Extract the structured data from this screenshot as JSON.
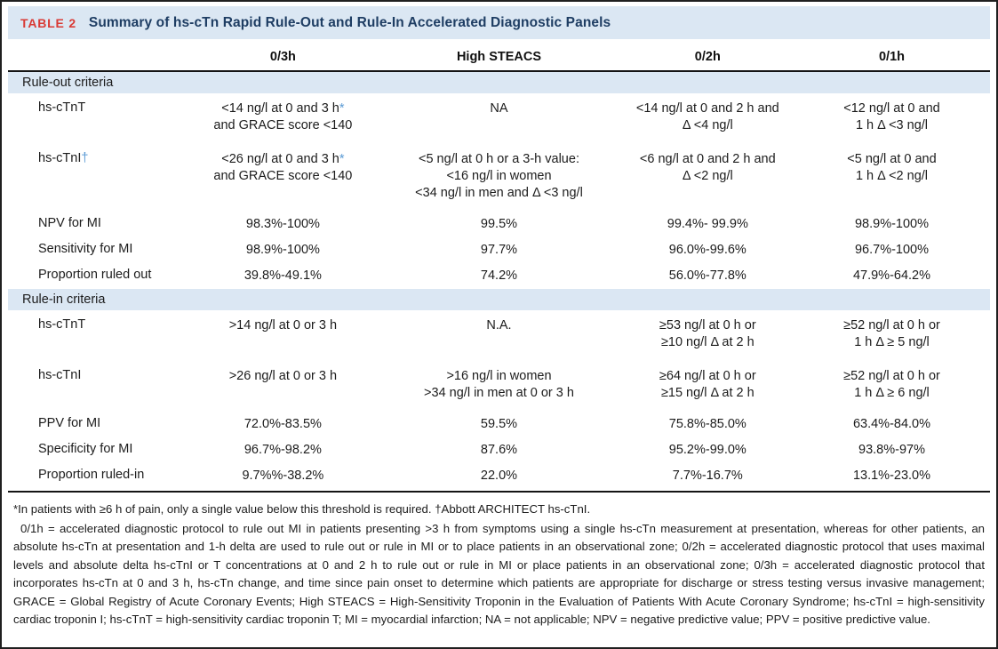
{
  "table": {
    "tag": "TABLE 2",
    "title": "Summary of hs-cTn Rapid Rule-Out and Rule-In Accelerated Diagnostic Panels",
    "columns": [
      "0/3h",
      "High STEACS",
      "0/2h",
      "0/1h"
    ],
    "sections": [
      {
        "label": "Rule-out criteria",
        "rows": [
          {
            "label": "hs-cTnT",
            "cells": [
              [
                "<14 ng/l at 0 and 3 h*",
                "and GRACE score <140"
              ],
              [
                "NA"
              ],
              [
                "<14 ng/l at 0 and 2 h and",
                "Δ <4 ng/l"
              ],
              [
                "<12 ng/l at 0 and",
                "1 h Δ <3 ng/l"
              ]
            ]
          },
          {
            "label": "hs-cTnI†",
            "cells": [
              [
                "<26 ng/l at 0 and 3 h*",
                "and GRACE score <140"
              ],
              [
                "<5 ng/l at 0 h or a 3-h value:",
                "<16 ng/l in women",
                "<34 ng/l in men and Δ <3 ng/l"
              ],
              [
                "<6 ng/l at 0 and 2 h and",
                "Δ <2 ng/l"
              ],
              [
                "<5 ng/l at 0 and",
                "1 h Δ <2 ng/l"
              ]
            ]
          },
          {
            "label": "NPV for MI",
            "cells": [
              [
                "98.3%-100%"
              ],
              [
                "99.5%"
              ],
              [
                "99.4%- 99.9%"
              ],
              [
                "98.9%-100%"
              ]
            ]
          },
          {
            "label": "Sensitivity for MI",
            "cells": [
              [
                "98.9%-100%"
              ],
              [
                "97.7%"
              ],
              [
                "96.0%-99.6%"
              ],
              [
                "96.7%-100%"
              ]
            ]
          },
          {
            "label": "Proportion ruled out",
            "cells": [
              [
                "39.8%-49.1%"
              ],
              [
                "74.2%"
              ],
              [
                "56.0%-77.8%"
              ],
              [
                "47.9%-64.2%"
              ]
            ]
          }
        ]
      },
      {
        "label": "Rule-in criteria",
        "rows": [
          {
            "label": "hs-cTnT",
            "cells": [
              [
                ">14 ng/l at 0 or 3 h"
              ],
              [
                "N.A."
              ],
              [
                "≥53 ng/l at 0 h or",
                "≥10 ng/l Δ at 2 h"
              ],
              [
                "≥52 ng/l at 0 h or",
                "1 h Δ ≥ 5 ng/l"
              ]
            ]
          },
          {
            "label": "hs-cTnI",
            "cells": [
              [
                ">26 ng/l at 0 or 3 h"
              ],
              [
                ">16 ng/l in women",
                ">34 ng/l in men at 0 or 3 h"
              ],
              [
                "≥64 ng/l at 0 h or",
                "≥15 ng/l Δ at 2 h"
              ],
              [
                "≥52 ng/l at 0 h or",
                "1 h Δ ≥ 6 ng/l"
              ]
            ]
          },
          {
            "label": "PPV for MI",
            "cells": [
              [
                "72.0%-83.5%"
              ],
              [
                "59.5%"
              ],
              [
                "75.8%-85.0%"
              ],
              [
                "63.4%-84.0%"
              ]
            ]
          },
          {
            "label": "Specificity for MI",
            "cells": [
              [
                "96.7%-98.2%"
              ],
              [
                "87.6%"
              ],
              [
                "95.2%-99.0%"
              ],
              [
                "93.8%-97%"
              ]
            ]
          },
          {
            "label": "Proportion ruled-in",
            "cells": [
              [
                "9.7%%-38.2%"
              ],
              [
                "22.0%"
              ],
              [
                "7.7%-16.7%"
              ],
              [
                "13.1%-23.0%"
              ]
            ]
          }
        ]
      }
    ]
  },
  "footnotes": {
    "symbols": "*In patients with ≥6 h of pain, only a single value below this threshold is required. †Abbott ARCHITECT hs-cTnI.",
    "abbreviations": "0/1h = accelerated diagnostic protocol to rule out MI in patients presenting >3 h from symptoms using a single hs-cTn measurement at presentation, whereas for other patients, an absolute hs-cTn at presentation and 1-h delta are used to rule out or rule in MI or to place patients in an observational zone; 0/2h = accelerated diagnostic protocol that uses maximal levels and absolute delta hs-cTnI or T concentrations at 0 and 2 h to rule out or rule in MI or place patients in an observational zone; 0/3h = accelerated diagnostic protocol that incorporates hs-cTn at 0 and 3 h, hs-cTn change, and time since pain onset to determine which patients are appropriate for discharge or stress testing versus invasive management; GRACE = Global Registry of Acute Coronary Events; High STEACS = High-Sensitivity Troponin in the Evaluation of Patients With Acute Coronary Syndrome; hs-cTnI = high-sensitivity cardiac troponin I; hs-cTnT = high-sensitivity cardiac troponin T; MI = myocardial infarction; NA = not applicable; NPV = negative predictive value; PPV = positive predictive value."
  },
  "colors": {
    "band_blue": "#dbe7f3",
    "tag_red": "#d93a35",
    "title_navy": "#1e3d63",
    "marker_blue": "#5b9bd5",
    "rule_black": "#141414"
  }
}
